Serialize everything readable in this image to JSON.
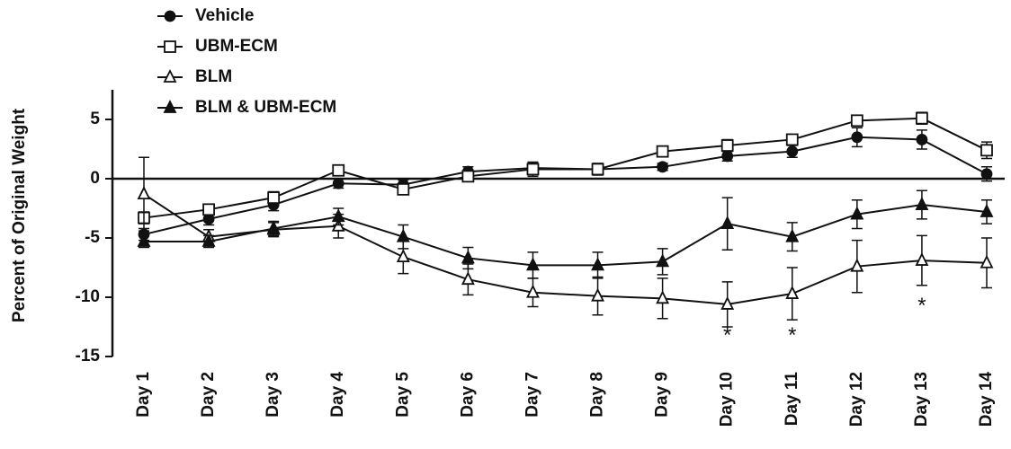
{
  "chart_data": {
    "type": "line",
    "y_label": "Percent of Original Weight",
    "categories": [
      "Day 1",
      "Day 2",
      "Day 3",
      "Day 4",
      "Day 5",
      "Day 6",
      "Day 7",
      "Day 8",
      "Day 9",
      "Day 10",
      "Day 11",
      "Day 12",
      "Day 13",
      "Day 14"
    ],
    "ylim": [
      -15,
      7.5
    ],
    "yticks": [
      -15,
      -10,
      -5,
      0,
      5
    ],
    "legend": "top-left",
    "series": [
      {
        "name": "Vehicle",
        "color": "#111111",
        "marker": "filled-circle",
        "values": [
          -4.7,
          -3.4,
          -2.2,
          -0.4,
          -0.5,
          0.6,
          0.9,
          0.8,
          1.0,
          1.9,
          2.3,
          3.5,
          3.3,
          0.4
        ],
        "errors": [
          0.5,
          0.5,
          0.5,
          0.4,
          0.4,
          0.4,
          0.4,
          0.4,
          0.3,
          0.4,
          0.5,
          0.8,
          0.8,
          0.6
        ]
      },
      {
        "name": "UBM-ECM",
        "color": "#111111",
        "marker": "open-square",
        "values": [
          -3.3,
          -2.6,
          -1.6,
          0.7,
          -0.9,
          0.2,
          0.8,
          0.8,
          2.3,
          2.8,
          3.3,
          4.9,
          5.1,
          2.4
        ],
        "errors": [
          0.5,
          0.4,
          0.5,
          0.4,
          0.4,
          0.3,
          0.6,
          0.5,
          0.4,
          0.5,
          0.4,
          0.4,
          0.5,
          0.7
        ]
      },
      {
        "name": "BLM",
        "color": "#111111",
        "marker": "open-triangle",
        "values": [
          -1.3,
          -4.9,
          -4.3,
          -4.0,
          -6.6,
          -8.5,
          -9.6,
          -9.9,
          -10.1,
          -10.6,
          -9.7,
          -7.4,
          -6.9,
          -7.1
        ],
        "errors": [
          3.1,
          0.6,
          0.6,
          1.0,
          1.4,
          1.3,
          1.2,
          1.6,
          1.7,
          1.9,
          2.2,
          2.2,
          2.1,
          2.1
        ]
      },
      {
        "name": "BLM & UBM-ECM",
        "color": "#111111",
        "marker": "filled-triangle",
        "values": [
          -5.3,
          -5.3,
          -4.2,
          -3.2,
          -4.9,
          -6.7,
          -7.3,
          -7.3,
          -7.0,
          -3.8,
          -4.9,
          -3.0,
          -2.2,
          -2.8
        ],
        "errors": [
          0.5,
          0.5,
          0.6,
          0.7,
          1.0,
          0.9,
          1.1,
          1.1,
          1.1,
          2.2,
          1.2,
          1.2,
          1.2,
          1.0
        ]
      }
    ],
    "annotations": [
      {
        "text": "*",
        "x": "Day 10",
        "y": -13
      },
      {
        "text": "*",
        "x": "Day 11",
        "y": -13
      },
      {
        "text": "*",
        "x": "Day 13",
        "y": -10.5
      }
    ]
  }
}
